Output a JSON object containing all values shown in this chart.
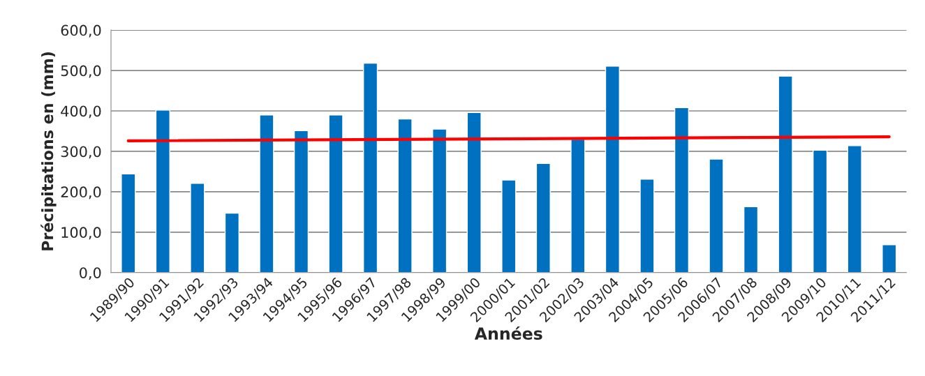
{
  "chart_data": {
    "type": "bar",
    "xlabel": "Années",
    "ylabel": "Précipitations en (mm)",
    "categories": [
      "1989/90",
      "1990/91",
      "1991/92",
      "1992/93",
      "1993/94",
      "1994/95",
      "1995/96",
      "1996/97",
      "1997/98",
      "1998/99",
      "1999/00",
      "2000/01",
      "2001/02",
      "2002/03",
      "2003/04",
      "2004/05",
      "2005/06",
      "2006/07",
      "2007/08",
      "2008/09",
      "2009/10",
      "2010/11",
      "2011/12"
    ],
    "series": [
      {
        "color": "#0070c0",
        "values": [
          244,
          402,
          221,
          147,
          390,
          351,
          390,
          518,
          380,
          355,
          396,
          229,
          270,
          330,
          511,
          231,
          408,
          281,
          163,
          486,
          303,
          314,
          69
        ]
      },
      {
        "type": "line",
        "color": "#ff0000",
        "x": [
          "1989/90",
          "2011/12"
        ],
        "values": [
          326,
          336
        ]
      }
    ],
    "ylim": [
      0,
      600
    ],
    "yticks": [
      {
        "value": 0,
        "label": "0,0"
      },
      {
        "value": 100,
        "label": "100,0"
      },
      {
        "value": 200,
        "label": "200,0"
      },
      {
        "value": 300,
        "label": "300,0"
      },
      {
        "value": 400,
        "label": "400,0"
      },
      {
        "value": 500,
        "label": "500,0"
      },
      {
        "value": 600,
        "label": "600,0"
      }
    ],
    "grid": "y",
    "legend": false
  }
}
